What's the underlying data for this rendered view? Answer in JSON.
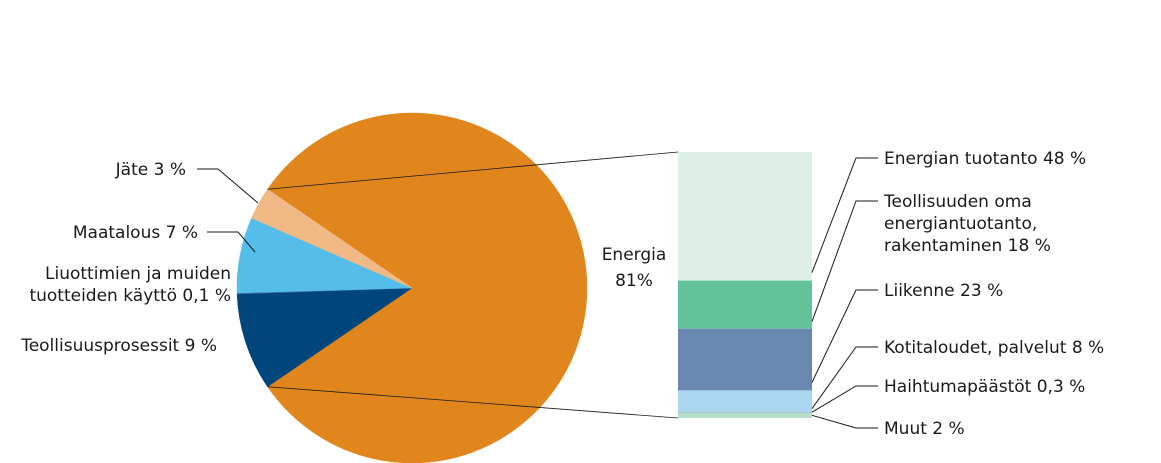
{
  "chart_data": [
    {
      "type": "pie",
      "title": "",
      "slices": [
        {
          "label": "Energia 81%",
          "lines": [
            "Energia",
            "81%"
          ],
          "value": 81,
          "color": "#e0861d"
        },
        {
          "label": "Teollisuusprosessit 9 %",
          "lines": [
            "Teollisuusprosessit 9 %"
          ],
          "value": 9,
          "color": "#00457c"
        },
        {
          "label": "Liuottimien ja muiden tuotteiden käyttö 0,1 %",
          "lines": [
            "Liuottimien ja muiden",
            "tuotteiden käyttö 0,1 %"
          ],
          "value": 0.1,
          "color": "#3d6fa8"
        },
        {
          "label": "Maatalous 7 %",
          "lines": [
            "Maatalous 7 %"
          ],
          "value": 7,
          "color": "#55bde9"
        },
        {
          "label": "Jäte 3 %",
          "lines": [
            "Jäte 3 %"
          ],
          "value": 3,
          "color": "#f0b986"
        }
      ]
    },
    {
      "type": "bar",
      "stacked": true,
      "breakdown_of": "Energia 81%",
      "segments": [
        {
          "label": "Energian tuotanto 48 %",
          "lines": [
            "Energian tuotanto 48 %"
          ],
          "value": 48,
          "color": "#deefe6"
        },
        {
          "label": "Teollisuuden oma energiantuotanto, rakentaminen 18 %",
          "lines": [
            "Teollisuuden oma",
            "energiantuotanto,",
            "rakentaminen 18 %"
          ],
          "value": 18,
          "color": "#62c39b"
        },
        {
          "label": "Liikenne 23 %",
          "lines": [
            "Liikenne 23 %"
          ],
          "value": 23,
          "color": "#6a87b2"
        },
        {
          "label": "Kotitaloudet, palvelut 8 %",
          "lines": [
            "Kotitaloudet, palvelut 8 %"
          ],
          "value": 8,
          "color": "#aad8f3"
        },
        {
          "label": "Haihtumapäästöt 0,3 %",
          "lines": [
            "Haihtumapäästöt 0,3 %"
          ],
          "value": 0.3,
          "color": "#8fa6c9"
        },
        {
          "label": "Muut 2 %",
          "lines": [
            "Muut 2 %"
          ],
          "value": 2,
          "color": "#b5dfc8"
        }
      ]
    }
  ]
}
